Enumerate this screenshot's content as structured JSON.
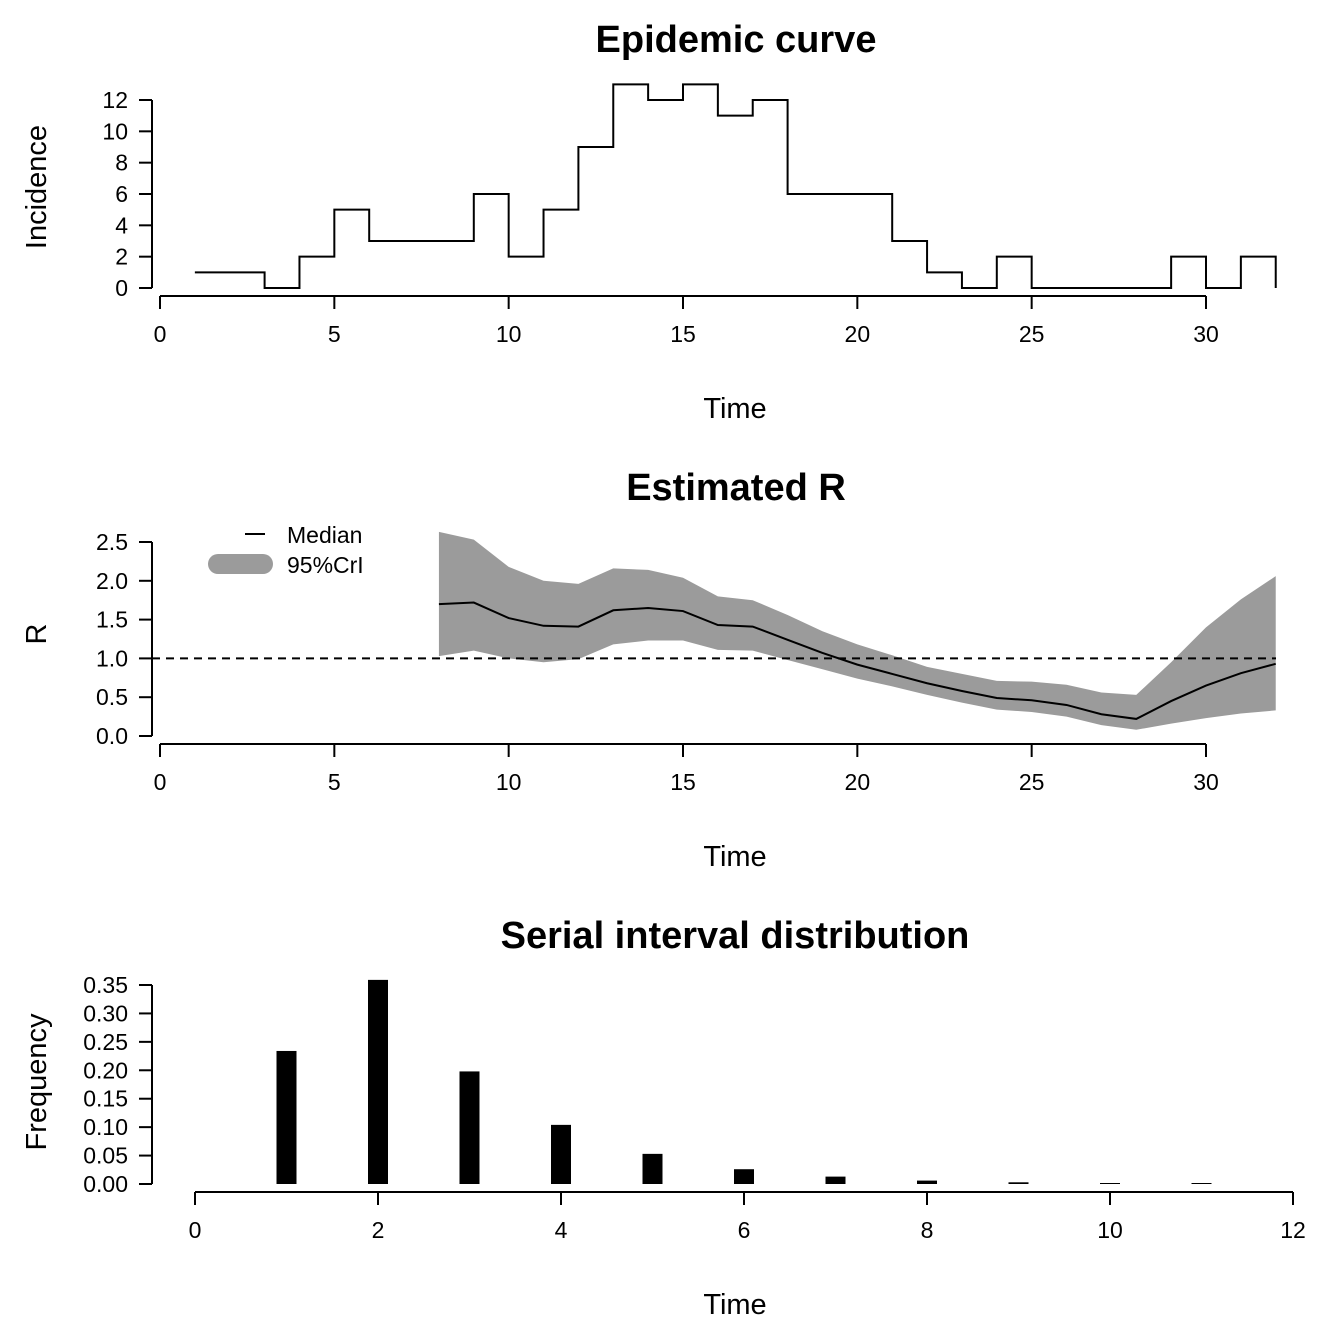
{
  "chart_data": [
    {
      "type": "step",
      "title": "Epidemic curve",
      "xlabel": "Time",
      "ylabel": "Incidence",
      "xlim": [
        0,
        32
      ],
      "ylim": [
        0,
        13
      ],
      "xticks": [
        0,
        5,
        10,
        15,
        20,
        25,
        30
      ],
      "yticks": [
        0,
        2,
        4,
        6,
        8,
        10,
        12
      ],
      "series": [
        {
          "name": "Incidence",
          "x": [
            1,
            2,
            3,
            4,
            5,
            6,
            7,
            8,
            9,
            10,
            11,
            12,
            13,
            14,
            15,
            16,
            17,
            18,
            19,
            20,
            21,
            22,
            23,
            24,
            25,
            26,
            27,
            28,
            29,
            30,
            31,
            32
          ],
          "values": [
            1,
            1,
            0,
            2,
            5,
            3,
            3,
            3,
            6,
            2,
            5,
            9,
            13,
            12,
            13,
            11,
            12,
            6,
            6,
            6,
            3,
            1,
            0,
            2,
            0,
            0,
            0,
            0,
            2,
            0,
            2,
            0
          ]
        }
      ]
    },
    {
      "type": "line",
      "title": "Estimated R",
      "xlabel": "Time",
      "ylabel": "R",
      "xlim": [
        0,
        32
      ],
      "ylim": [
        0,
        2.6
      ],
      "xticks": [
        0,
        5,
        10,
        15,
        20,
        25,
        30
      ],
      "yticks": [
        "0.0",
        "0.5",
        "1.0",
        "1.5",
        "2.0",
        "2.5"
      ],
      "reference_line": 1.0,
      "legend": [
        {
          "label": "Median",
          "style": "line"
        },
        {
          "label": "95%CrI",
          "style": "band"
        }
      ],
      "series": [
        {
          "name": "Median",
          "x": [
            8,
            9,
            10,
            11,
            12,
            13,
            14,
            15,
            16,
            17,
            18,
            19,
            20,
            21,
            22,
            23,
            24,
            25,
            26,
            27,
            28,
            29,
            30,
            31,
            32
          ],
          "values": [
            1.7,
            1.72,
            1.52,
            1.42,
            1.41,
            1.62,
            1.65,
            1.61,
            1.43,
            1.41,
            1.24,
            1.07,
            0.92,
            0.8,
            0.68,
            0.58,
            0.49,
            0.46,
            0.4,
            0.28,
            0.22,
            0.45,
            0.65,
            0.81,
            0.93
          ]
        },
        {
          "name": "95%CrI lower",
          "x": [
            8,
            9,
            10,
            11,
            12,
            13,
            14,
            15,
            16,
            17,
            18,
            19,
            20,
            21,
            22,
            23,
            24,
            25,
            26,
            27,
            28,
            29,
            30,
            31,
            32
          ],
          "values": [
            1.03,
            1.1,
            1.0,
            0.95,
            0.99,
            1.18,
            1.23,
            1.23,
            1.11,
            1.1,
            0.98,
            0.86,
            0.74,
            0.64,
            0.53,
            0.43,
            0.34,
            0.31,
            0.25,
            0.14,
            0.08,
            0.16,
            0.23,
            0.29,
            0.33
          ]
        },
        {
          "name": "95%CrI upper",
          "x": [
            8,
            9,
            10,
            11,
            12,
            13,
            14,
            15,
            16,
            17,
            18,
            19,
            20,
            21,
            22,
            23,
            24,
            25,
            26,
            27,
            28,
            29,
            30,
            31,
            32
          ],
          "values": [
            2.63,
            2.53,
            2.18,
            2.0,
            1.96,
            2.16,
            2.14,
            2.04,
            1.8,
            1.75,
            1.56,
            1.35,
            1.18,
            1.04,
            0.89,
            0.8,
            0.71,
            0.7,
            0.66,
            0.56,
            0.53,
            0.95,
            1.4,
            1.76,
            2.06
          ]
        }
      ],
      "colors": {
        "band": "#9b9b9b",
        "line": "#000000"
      }
    },
    {
      "type": "bar",
      "title": "Serial interval distribution",
      "xlabel": "Time",
      "ylabel": "Frequency",
      "xlim": [
        0,
        12
      ],
      "ylim": [
        0,
        0.36
      ],
      "xticks": [
        0,
        2,
        4,
        6,
        8,
        10,
        12
      ],
      "yticks": [
        "0.00",
        "0.05",
        "0.10",
        "0.15",
        "0.20",
        "0.25",
        "0.30",
        "0.35"
      ],
      "x": [
        1,
        2,
        3,
        4,
        5,
        6,
        7,
        8,
        9,
        10,
        11
      ],
      "values": [
        0.234,
        0.359,
        0.198,
        0.104,
        0.053,
        0.026,
        0.013,
        0.006,
        0.003,
        0.0013,
        0.0006
      ]
    }
  ]
}
